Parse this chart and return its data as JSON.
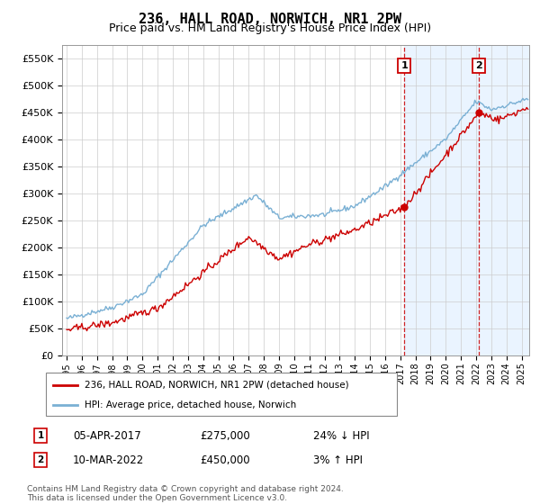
{
  "title": "236, HALL ROAD, NORWICH, NR1 2PW",
  "subtitle": "Price paid vs. HM Land Registry's House Price Index (HPI)",
  "ylim": [
    0,
    575000
  ],
  "yticks": [
    0,
    50000,
    100000,
    150000,
    200000,
    250000,
    300000,
    350000,
    400000,
    450000,
    500000,
    550000
  ],
  "ytick_labels": [
    "£0",
    "£50K",
    "£100K",
    "£150K",
    "£200K",
    "£250K",
    "£300K",
    "£350K",
    "£400K",
    "£450K",
    "£500K",
    "£550K"
  ],
  "background_color": "#ffffff",
  "plot_bg_color": "#ffffff",
  "grid_color": "#cccccc",
  "hpi_color": "#7ab0d4",
  "price_color": "#cc0000",
  "sale1_date_num": 2017.26,
  "sale1_price": 275000,
  "sale2_date_num": 2022.19,
  "sale2_price": 450000,
  "shade_color": "#ddeeff",
  "legend_price_label": "236, HALL ROAD, NORWICH, NR1 2PW (detached house)",
  "legend_hpi_label": "HPI: Average price, detached house, Norwich",
  "annotation1_date": "05-APR-2017",
  "annotation1_price": "£275,000",
  "annotation1_hpi": "24% ↓ HPI",
  "annotation2_date": "10-MAR-2022",
  "annotation2_price": "£450,000",
  "annotation2_hpi": "3% ↑ HPI",
  "footer": "Contains HM Land Registry data © Crown copyright and database right 2024.\nThis data is licensed under the Open Government Licence v3.0.",
  "xmin": 1994.7,
  "xmax": 2025.5,
  "title_fontsize": 11,
  "subtitle_fontsize": 9,
  "tick_fontsize": 8,
  "legend_fontsize": 8,
  "annotation_fontsize": 8.5,
  "footer_fontsize": 6.5
}
